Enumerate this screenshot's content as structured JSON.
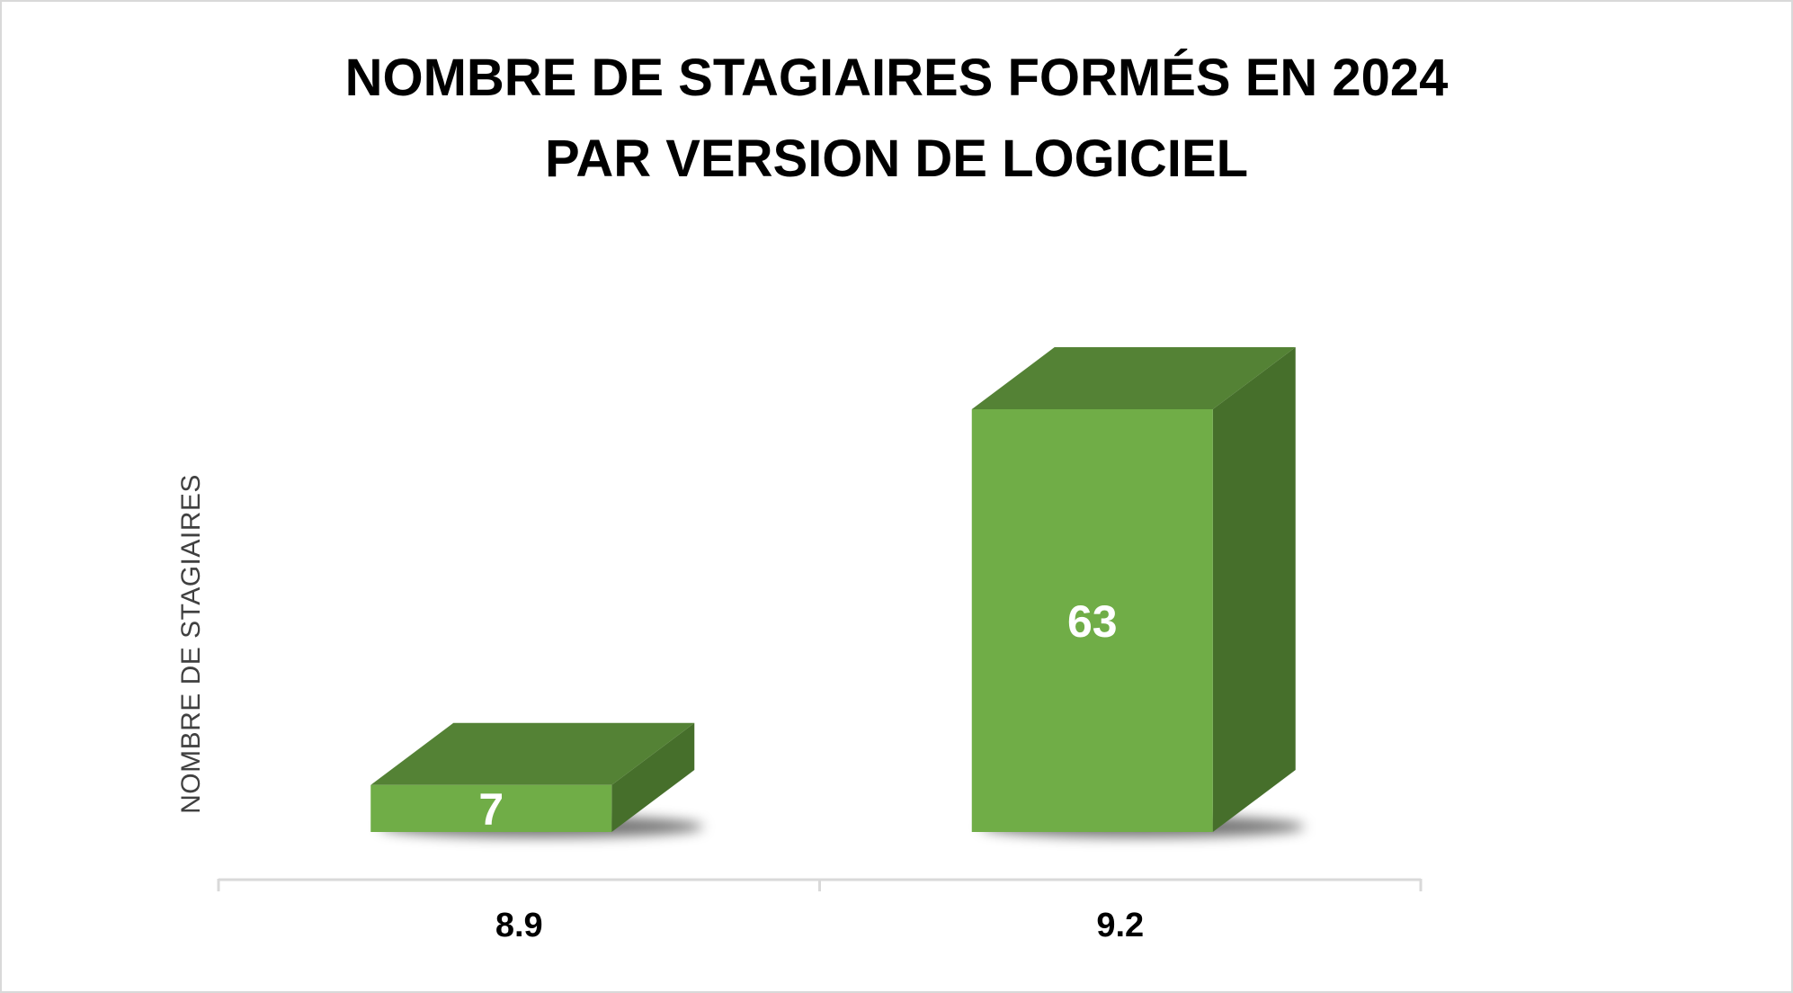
{
  "chart_data": {
    "type": "bar",
    "title_line1": "NOMBRE DE STAGIAIRES FORMÉS EN 2024",
    "title_line2": "PAR VERSION DE LOGICIEL",
    "xlabel": "",
    "ylabel": "NOMBRE DE STAGIAIRES",
    "categories": [
      "8.9",
      "9.2"
    ],
    "values": [
      7,
      63
    ],
    "data_labels": [
      "7",
      "63"
    ],
    "ylim": [
      0,
      63
    ],
    "grid": false,
    "legend": "none",
    "style": "3d-column"
  },
  "colors": {
    "bar_front": "#70ad47",
    "bar_top": "#548235",
    "bar_side": "#466f2b",
    "axis": "#d9d9d9",
    "data_label": "#ffffff"
  }
}
